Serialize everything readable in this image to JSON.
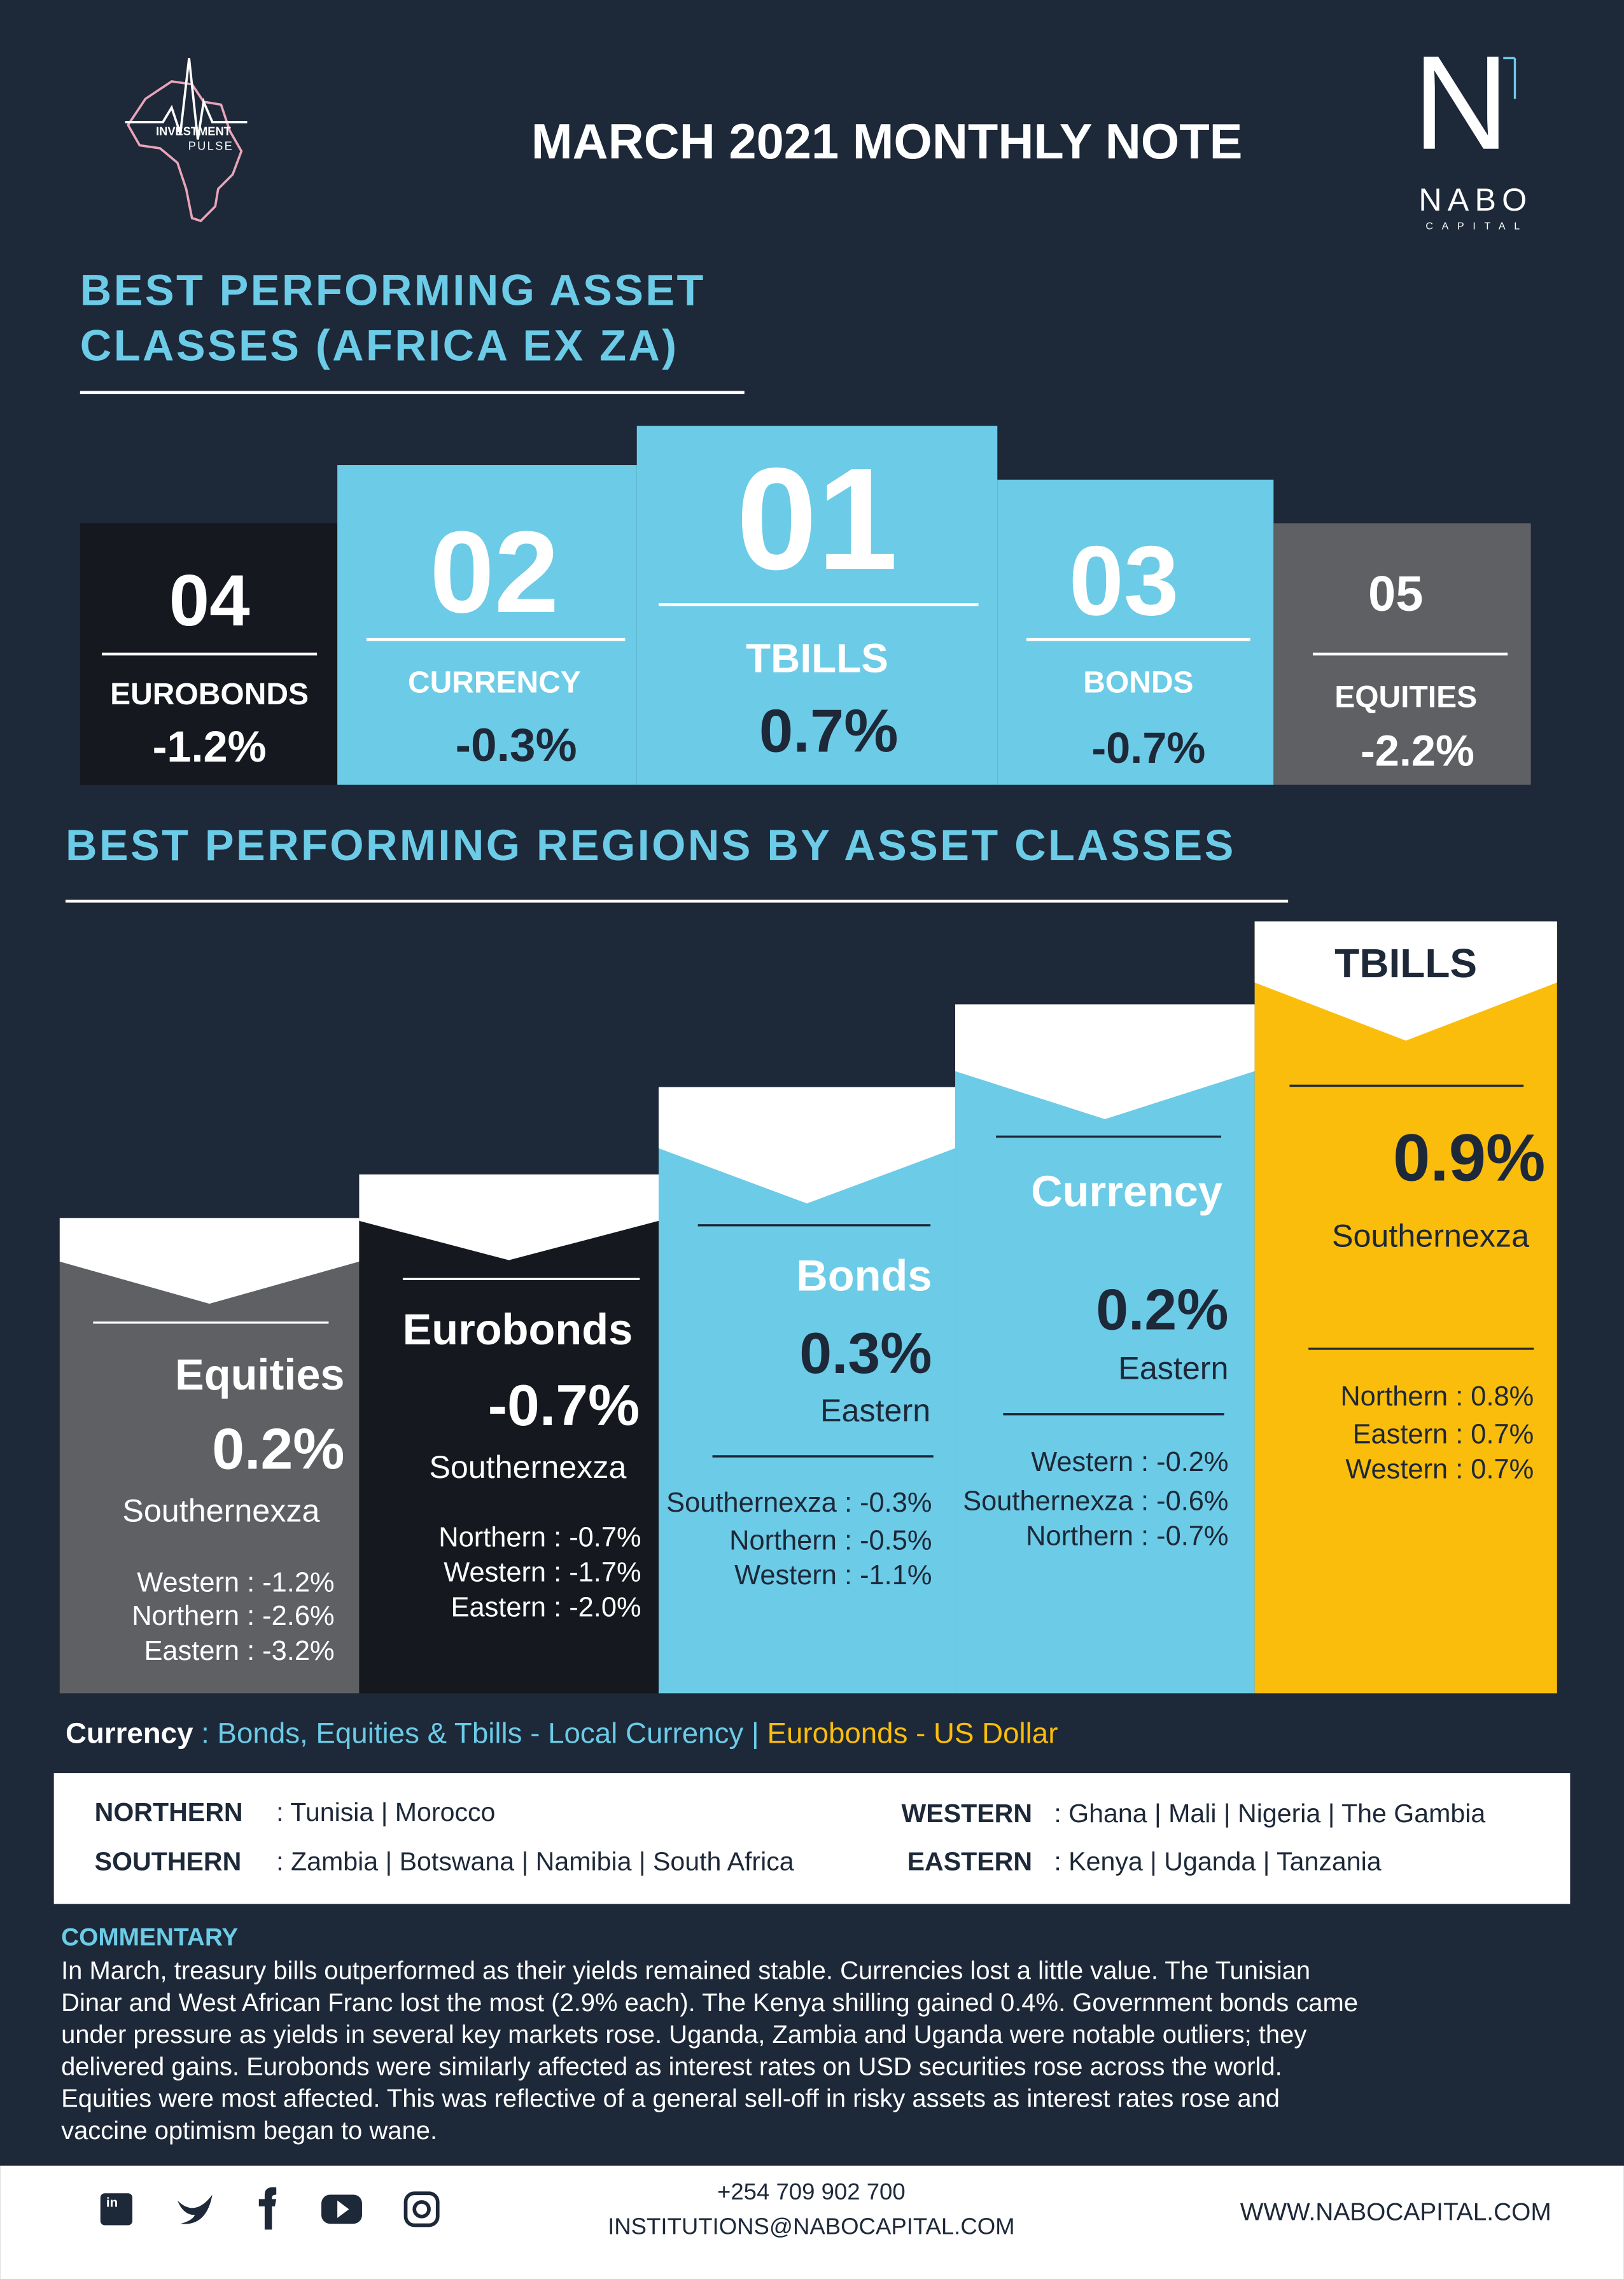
{
  "header": {
    "logo_top": "INVESTMENT",
    "logo_bottom": "PULSE",
    "title": "MARCH 2021 MONTHLY NOTE",
    "brand_mark": "N",
    "brand": "NABO",
    "brand_sub": "CAPITAL"
  },
  "asset_classes": {
    "title_lines": [
      "BEST PERFORMING ASSET",
      "CLASSES (AFRICA EX ZA)"
    ],
    "items": [
      {
        "rank": "04",
        "name": "EUROBONDS",
        "value": "-1.2%"
      },
      {
        "rank": "02",
        "name": "CURRENCY",
        "value": "-0.3%"
      },
      {
        "rank": "01",
        "name": "TBILLS",
        "value": "0.7%"
      },
      {
        "rank": "03",
        "name": "BONDS",
        "value": "-0.7%"
      },
      {
        "rank": "05",
        "name": "EQUITIES",
        "value": "-2.2%"
      }
    ]
  },
  "regions": {
    "title": "BEST PERFORMING REGIONS BY ASSET CLASSES",
    "items": [
      {
        "name": "Equities",
        "value": "0.2%",
        "region": "Southernexza",
        "others": [
          "Western : -1.2%",
          "Northern : -2.6%",
          "Eastern : -3.2%"
        ]
      },
      {
        "name": "Eurobonds",
        "value": "-0.7%",
        "region": "Southernexza",
        "others": [
          "Northern : -0.7%",
          "Western : -1.7%",
          "Eastern : -2.0%"
        ]
      },
      {
        "name": "Bonds",
        "value": "0.3%",
        "region": "Eastern",
        "others": [
          "Southernexza : -0.3%",
          "Northern : -0.5%",
          "Western : -1.1%"
        ]
      },
      {
        "name": "Currency",
        "value": "0.2%",
        "region": "Eastern",
        "others": [
          "Western : -0.2%",
          "Southernexza : -0.6%",
          "Northern : -0.7%"
        ]
      },
      {
        "name": "TBILLS",
        "value": "0.9%",
        "region": "Southernexza",
        "others": [
          "Northern : 0.8%",
          "Eastern : 0.7%",
          "Western : 0.7%"
        ]
      }
    ]
  },
  "currency_note": {
    "label": "Currency",
    "local": ": Bonds, Equities & Tbills - Local Currency |",
    "usd": "Eurobonds - US Dollar"
  },
  "legend": [
    {
      "region": "NORTHERN",
      "countries": ": Tunisia | Morocco"
    },
    {
      "region": "SOUTHERN",
      "countries": ": Zambia | Botswana | Namibia | South Africa"
    },
    {
      "region": "WESTERN",
      "countries": ": Ghana | Mali | Nigeria | The Gambia"
    },
    {
      "region": "EASTERN",
      "countries": ": Kenya | Uganda | Tanzania"
    }
  ],
  "commentary": {
    "title": "COMMENTARY",
    "lines": [
      "In March, treasury bills outperformed as their yields remained stable.  Currencies lost a little value. The Tunisian",
      "Dinar and West African Franc lost the most (2.9% each). The Kenya shilling gained 0.4%. Government bonds came",
      "under pressure as yields in several key markets rose. Uganda, Zambia and Uganda were notable outliers; they",
      "delivered gains. Eurobonds were similarly affected as interest rates on USD securities rose across the world.",
      "Equities were most affected. This was reflective of a general sell-off in risky assets as interest rates rose and",
      "vaccine optimism began to wane."
    ]
  },
  "footer": {
    "phone": "+254 709 902 700",
    "email": "INSTITUTIONS@NABOCAPITAL.COM",
    "website": "WWW.NABOCAPITAL.COM"
  }
}
